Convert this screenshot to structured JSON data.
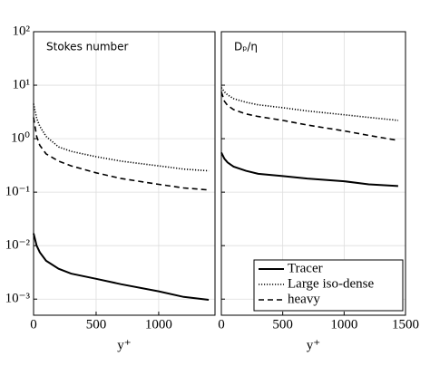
{
  "chart_data": [
    {
      "type": "line",
      "annotation": "Stokes number",
      "xlabel": "y⁺",
      "x": [
        0,
        25,
        50,
        100,
        200,
        300,
        500,
        700,
        1000,
        1200,
        1400
      ],
      "xlim": [
        0,
        1450
      ],
      "xticks": [
        0,
        500,
        1000
      ],
      "ylog": true,
      "ylim": [
        0.0005,
        100
      ],
      "yticks": [
        {
          "value": 0.001,
          "label": "10⁻³"
        },
        {
          "value": 0.01,
          "label": "10⁻²"
        },
        {
          "value": 0.1,
          "label": "10⁻¹"
        },
        {
          "value": 1,
          "label": "10⁰"
        },
        {
          "value": 10,
          "label": "10¹"
        },
        {
          "value": 100,
          "label": "10²"
        }
      ],
      "grid": true,
      "series": [
        {
          "style": "solid",
          "color": "#000000",
          "values": [
            0.017,
            0.01,
            0.0075,
            0.0052,
            0.0037,
            0.003,
            0.0024,
            0.0019,
            0.0014,
            0.0011,
            0.00097
          ]
        },
        {
          "style": "dotted",
          "color": "#000000",
          "values": [
            4.5,
            2.4,
            1.7,
            1.1,
            0.7,
            0.58,
            0.46,
            0.38,
            0.31,
            0.27,
            0.25
          ]
        },
        {
          "style": "dashed",
          "color": "#000000",
          "values": [
            2.5,
            1.1,
            0.75,
            0.52,
            0.38,
            0.31,
            0.23,
            0.18,
            0.14,
            0.12,
            0.11
          ]
        }
      ]
    },
    {
      "type": "line",
      "annotation": "Dₚ/η",
      "xlabel": "y⁺",
      "x": [
        0,
        25,
        50,
        100,
        200,
        300,
        500,
        700,
        1000,
        1200,
        1440
      ],
      "xlim": [
        0,
        1500
      ],
      "xticks": [
        0,
        500,
        1000,
        1500
      ],
      "ylog": true,
      "ylim": [
        0.0005,
        100
      ],
      "grid": true,
      "legend": "lower right",
      "series": [
        {
          "name": "Tracer",
          "style": "solid",
          "color": "#000000",
          "values": [
            0.55,
            0.42,
            0.36,
            0.3,
            0.25,
            0.22,
            0.2,
            0.18,
            0.16,
            0.14,
            0.13
          ]
        },
        {
          "name": "Large iso-dense",
          "style": "dotted",
          "color": "#000000",
          "values": [
            9,
            7.5,
            6.6,
            5.6,
            4.8,
            4.3,
            3.8,
            3.3,
            2.8,
            2.5,
            2.2
          ]
        },
        {
          "name": "heavy",
          "style": "dashed",
          "color": "#000000",
          "values": [
            7.5,
            5,
            4.2,
            3.5,
            2.9,
            2.6,
            2.2,
            1.8,
            1.4,
            1.15,
            0.93
          ]
        }
      ]
    }
  ]
}
